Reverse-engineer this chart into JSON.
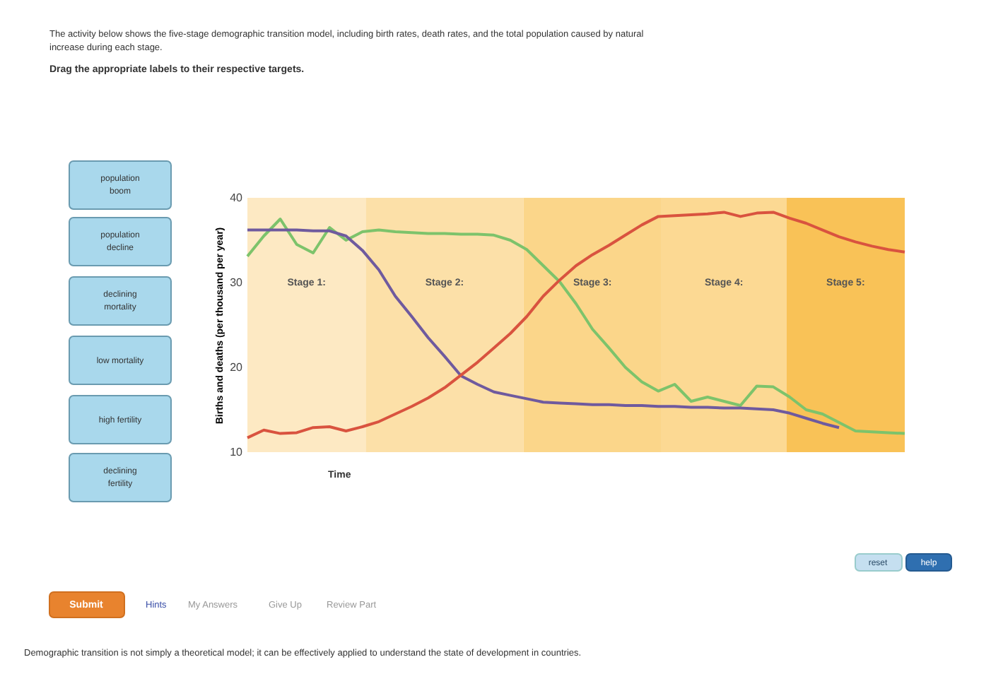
{
  "chart_data": {
    "type": "line",
    "title": "The activity below shows the five-stage demographic transition model, including birth rates, death rates, and the total population caused by natural increase during each stage.",
    "subtitle": "Drag the appropriate labels to their respective targets.",
    "xlabel": "Time",
    "ylabel": "Births and deaths (per thousand per year)",
    "categories": [
      null,
      null,
      null,
      null,
      null,
      null,
      null,
      null,
      null,
      null,
      null,
      null,
      null,
      null,
      null,
      null,
      null,
      null,
      null,
      null,
      null,
      null,
      null,
      null,
      null,
      null,
      null,
      null,
      null,
      null,
      null,
      null,
      null,
      null,
      null,
      null,
      null,
      null,
      null,
      null,
      null
    ],
    "ylim": [
      10,
      40
    ],
    "yticks": [
      10,
      20,
      30,
      40
    ],
    "tick_labels": "y",
    "grid": false,
    "series": [
      {
        "color": "#7dc36b",
        "values": [
          33.1,
          35.5,
          37.5,
          34.5,
          33.5,
          36.5,
          35,
          36,
          36.2,
          36,
          35.9,
          35.8,
          35.8,
          35.7,
          35.7,
          35.6,
          35,
          33.9,
          32,
          30.1,
          27.5,
          24.5,
          22.3,
          20,
          18.3,
          17.2,
          18,
          16,
          16.5,
          16,
          15.5,
          17.8,
          17.7,
          16.5,
          15,
          14.5,
          13.5,
          12.5,
          12.4,
          12.3,
          12.2
        ]
      },
      {
        "color": "#6f5a9e",
        "values": [
          36.2,
          36.2,
          36.2,
          36.2,
          36.1,
          36.1,
          35.5,
          33.8,
          31.5,
          28.4,
          26,
          23.5,
          21.3,
          19,
          18,
          17.1,
          16.7,
          16.3,
          15.9,
          15.8,
          15.7,
          15.6,
          15.6,
          15.5,
          15.5,
          15.4,
          15.4,
          15.3,
          15.3,
          15.2,
          15.2,
          15.1,
          15,
          14.6,
          14,
          13.4,
          12.9,
          null,
          null,
          null,
          null
        ]
      },
      {
        "color": "#d9533f",
        "values": [
          11.7,
          12.6,
          12.2,
          12.3,
          12.9,
          13,
          12.5,
          13,
          13.6,
          14.5,
          15.4,
          16.4,
          17.6,
          19.1,
          20.6,
          22.3,
          24,
          26,
          28.4,
          30.3,
          32,
          33.3,
          34.4,
          35.6,
          36.8,
          37.8,
          37.9,
          38,
          38.1,
          38.3,
          37.8,
          38.2,
          38.3,
          37.6,
          37,
          36.2,
          35.4,
          34.8,
          34.3,
          33.9,
          33.6
        ]
      }
    ],
    "annotations": [
      "population boom",
      "population decline",
      "declining mortality",
      "low mortality",
      "high fertility",
      "declining fertility",
      "Submit",
      "Hints",
      "My Answers",
      "Give Up",
      "Review Part",
      "reset",
      "help",
      "Demographic transition is not simply a theoretical model; it can be effectively applied to understand the state of development in countries.",
      "Stage 1:",
      "Stage 2:",
      "Stage 3:",
      "Stage 4:",
      "Stage 5:"
    ]
  }
}
